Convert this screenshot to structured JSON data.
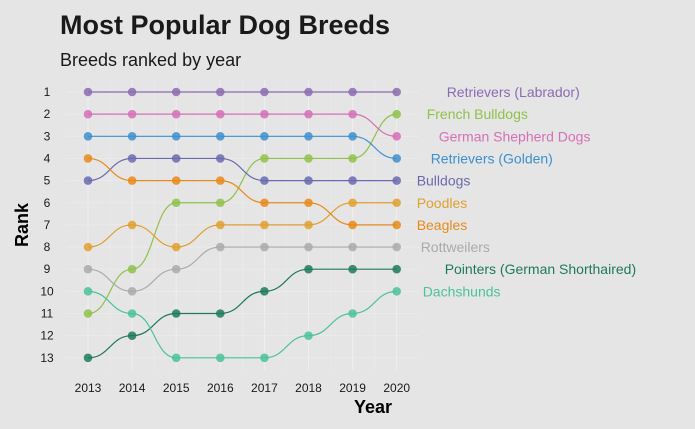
{
  "chart_data": {
    "type": "line",
    "title": "Most Popular Dog Breeds",
    "subtitle": "Breeds ranked by year",
    "xlabel": "Year",
    "ylabel": "Rank",
    "x": [
      2013,
      2014,
      2015,
      2016,
      2017,
      2018,
      2019,
      2020
    ],
    "ylim": [
      1,
      13
    ],
    "y_ticks": [
      1,
      2,
      3,
      4,
      5,
      6,
      7,
      8,
      9,
      10,
      11,
      12,
      13
    ],
    "y_reversed": true,
    "grid": true,
    "legend": "direct labels at right",
    "series": [
      {
        "name": "Retrievers (Labrador)",
        "color": "#8c6bb1",
        "values": [
          1,
          1,
          1,
          1,
          1,
          1,
          1,
          1
        ]
      },
      {
        "name": "French Bulldogs",
        "color": "#8fc24a",
        "values": [
          11,
          9,
          6,
          6,
          4,
          4,
          4,
          2
        ]
      },
      {
        "name": "German Shepherd Dogs",
        "color": "#d66fb8",
        "values": [
          2,
          2,
          2,
          2,
          2,
          2,
          2,
          3
        ]
      },
      {
        "name": "Retrievers (Golden)",
        "color": "#3d8fcf",
        "values": [
          3,
          3,
          3,
          3,
          3,
          3,
          3,
          4
        ]
      },
      {
        "name": "Bulldogs",
        "color": "#6a6ab0",
        "values": [
          5,
          4,
          4,
          4,
          5,
          5,
          5,
          5
        ]
      },
      {
        "name": "Poodles",
        "color": "#e0a030",
        "values": [
          8,
          7,
          8,
          7,
          7,
          7,
          6,
          6
        ]
      },
      {
        "name": "Beagles",
        "color": "#e88a1a",
        "values": [
          4,
          5,
          5,
          5,
          6,
          6,
          7,
          7
        ]
      },
      {
        "name": "Rottweilers",
        "color": "#aaaaaa",
        "values": [
          9,
          10,
          9,
          8,
          8,
          8,
          8,
          8
        ]
      },
      {
        "name": "Pointers (German Shorthaired)",
        "color": "#1f7a5a",
        "values": [
          13,
          12,
          11,
          11,
          10,
          9,
          9,
          9
        ]
      },
      {
        "name": "Dachshunds",
        "color": "#4cc29a",
        "values": [
          10,
          11,
          13,
          13,
          13,
          12,
          11,
          10
        ]
      }
    ]
  }
}
